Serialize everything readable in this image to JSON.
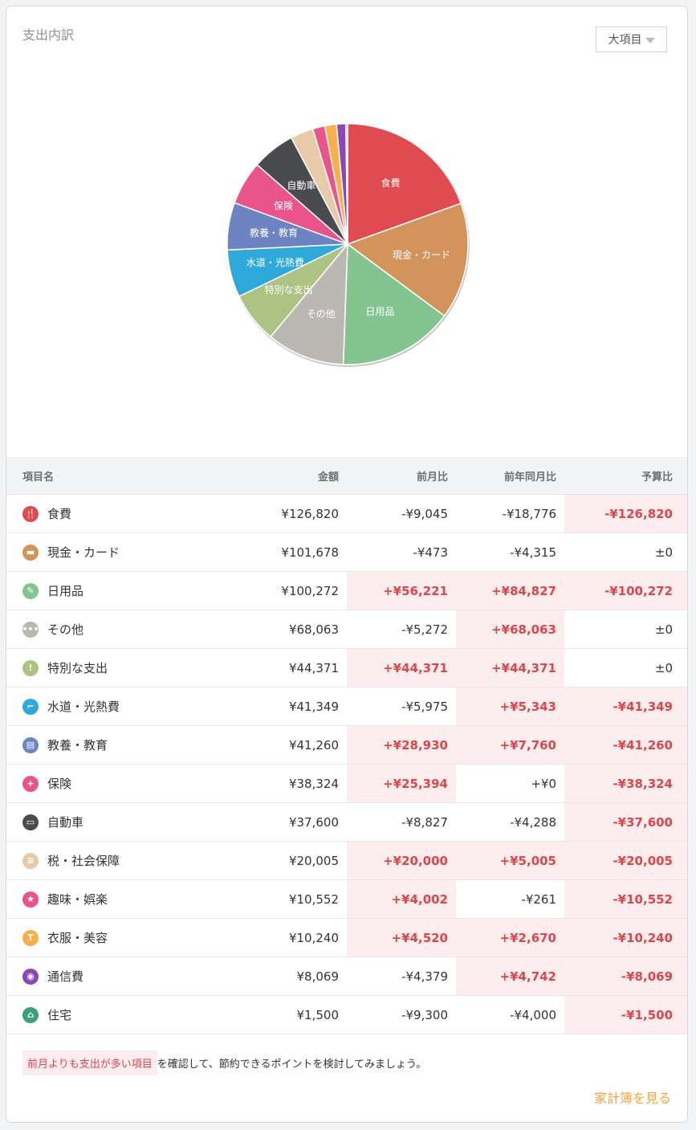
{
  "header": {
    "title": "支出内訳",
    "select_value": "大項目"
  },
  "chart_data": {
    "type": "pie",
    "direction": "clockwise-from-top",
    "slices": [
      {
        "label": "食費",
        "value": 126820,
        "color": "#e04b51",
        "show_label": true
      },
      {
        "label": "現金・カード",
        "value": 101678,
        "color": "#d3945c",
        "show_label": true
      },
      {
        "label": "日用品",
        "value": 100272,
        "color": "#84c491",
        "show_label": true
      },
      {
        "label": "その他",
        "value": 68063,
        "color": "#bbb7b2",
        "show_label": true
      },
      {
        "label": "特別な支出",
        "value": 44371,
        "color": "#adc383",
        "show_label": true
      },
      {
        "label": "水道・光熱費",
        "value": 41349,
        "color": "#2fa8da",
        "show_label": true
      },
      {
        "label": "教養・教育",
        "value": 41260,
        "color": "#6d83c2",
        "show_label": true
      },
      {
        "label": "保険",
        "value": 38324,
        "color": "#e9558b",
        "show_label": true
      },
      {
        "label": "自動車",
        "value": 37600,
        "color": "#4a4b4f",
        "show_label": true
      },
      {
        "label": "税・社会保障",
        "value": 20005,
        "color": "#e8c9a8",
        "show_label": false
      },
      {
        "label": "趣味・娯楽",
        "value": 10552,
        "color": "#e9558b",
        "show_label": false
      },
      {
        "label": "衣服・美容",
        "value": 10240,
        "color": "#f8b04a",
        "show_label": false
      },
      {
        "label": "通信費",
        "value": 8069,
        "color": "#8c47b5",
        "show_label": false
      },
      {
        "label": "住宅",
        "value": 1500,
        "color": "#3aa07f",
        "show_label": false
      }
    ]
  },
  "table": {
    "headers": [
      "項目名",
      "金額",
      "前月比",
      "前年同月比",
      "予算比"
    ],
    "rows": [
      {
        "name": "食費",
        "icon": "fork-knife-icon",
        "glyph": "🍴",
        "color": "#e04b51",
        "amount": "¥126,820",
        "mom": "-¥9,045",
        "yoy": "-¥18,776",
        "budget": "-¥126,820"
      },
      {
        "name": "現金・カード",
        "icon": "wallet-icon",
        "glyph": "▬",
        "color": "#d3945c",
        "amount": "¥101,678",
        "mom": "-¥473",
        "yoy": "-¥4,315",
        "budget": "±0"
      },
      {
        "name": "日用品",
        "icon": "pencil-icon",
        "glyph": "✎",
        "color": "#84c491",
        "amount": "¥100,272",
        "mom": "+¥56,221",
        "yoy": "+¥84,827",
        "budget": "-¥100,272"
      },
      {
        "name": "その他",
        "icon": "ellipsis-icon",
        "glyph": "•••",
        "color": "#bbb7b2",
        "amount": "¥68,063",
        "mom": "-¥5,272",
        "yoy": "+¥68,063",
        "budget": "±0"
      },
      {
        "name": "特別な支出",
        "icon": "exclamation-icon",
        "glyph": "!",
        "color": "#adc383",
        "amount": "¥44,371",
        "mom": "+¥44,371",
        "yoy": "+¥44,371",
        "budget": "±0"
      },
      {
        "name": "水道・光熱費",
        "icon": "faucet-icon",
        "glyph": "⌐",
        "color": "#2fa8da",
        "amount": "¥41,349",
        "mom": "-¥5,975",
        "yoy": "+¥5,343",
        "budget": "-¥41,349"
      },
      {
        "name": "教養・教育",
        "icon": "book-icon",
        "glyph": "▤",
        "color": "#6d83c2",
        "amount": "¥41,260",
        "mom": "+¥28,930",
        "yoy": "+¥7,760",
        "budget": "-¥41,260"
      },
      {
        "name": "保険",
        "icon": "medical-icon",
        "glyph": "+",
        "color": "#e9558b",
        "amount": "¥38,324",
        "mom": "+¥25,394",
        "yoy": "+¥0",
        "budget": "-¥38,324"
      },
      {
        "name": "自動車",
        "icon": "car-icon",
        "glyph": "▭",
        "color": "#4a4b4f",
        "amount": "¥37,600",
        "mom": "-¥8,827",
        "yoy": "-¥4,288",
        "budget": "-¥37,600"
      },
      {
        "name": "税・社会保障",
        "icon": "coins-icon",
        "glyph": "≡",
        "color": "#e8c9a8",
        "amount": "¥20,005",
        "mom": "+¥20,000",
        "yoy": "+¥5,005",
        "budget": "-¥20,005"
      },
      {
        "name": "趣味・娯楽",
        "icon": "star-icon",
        "glyph": "★",
        "color": "#e9558b",
        "amount": "¥10,552",
        "mom": "+¥4,002",
        "yoy": "-¥261",
        "budget": "-¥10,552"
      },
      {
        "name": "衣服・美容",
        "icon": "shirt-icon",
        "glyph": "T",
        "color": "#f8b04a",
        "amount": "¥10,240",
        "mom": "+¥4,520",
        "yoy": "+¥2,670",
        "budget": "-¥10,240"
      },
      {
        "name": "通信費",
        "icon": "antenna-icon",
        "glyph": "◉",
        "color": "#8c47b5",
        "amount": "¥8,069",
        "mom": "-¥4,379",
        "yoy": "+¥4,742",
        "budget": "-¥8,069"
      },
      {
        "name": "住宅",
        "icon": "home-icon",
        "glyph": "⌂",
        "color": "#3aa07f",
        "amount": "¥1,500",
        "mom": "-¥9,300",
        "yoy": "-¥4,000",
        "budget": "-¥1,500"
      }
    ]
  },
  "footer": {
    "highlight": "前月よりも支出が多い項目",
    "text": "を確認して、節約できるポイントを検討してみましょう。",
    "link": "家計簿を見る"
  }
}
